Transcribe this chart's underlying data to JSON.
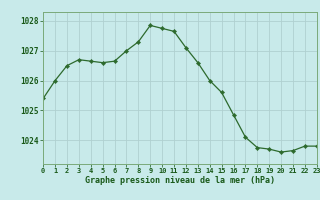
{
  "hours": [
    0,
    1,
    2,
    3,
    4,
    5,
    6,
    7,
    8,
    9,
    10,
    11,
    12,
    13,
    14,
    15,
    16,
    17,
    18,
    19,
    20,
    21,
    22,
    23
  ],
  "pressure": [
    1025.4,
    1026.0,
    1026.5,
    1026.7,
    1026.65,
    1026.6,
    1026.65,
    1027.0,
    1027.3,
    1027.85,
    1027.75,
    1027.65,
    1027.1,
    1026.6,
    1026.0,
    1025.6,
    1024.85,
    1024.1,
    1023.75,
    1023.7,
    1023.6,
    1023.65,
    1023.8,
    1023.8
  ],
  "line_color": "#2d6a2d",
  "marker_color": "#2d6a2d",
  "bg_color": "#c8eaea",
  "grid_color": "#b0d0d0",
  "spine_color": "#7aaa7a",
  "xlabel": "Graphe pression niveau de la mer (hPa)",
  "xlabel_color": "#1a5a1a",
  "tick_color": "#1a5a1a",
  "ylim": [
    1023.2,
    1028.3
  ],
  "yticks": [
    1024,
    1025,
    1026,
    1027,
    1028
  ],
  "xlim": [
    0,
    23
  ],
  "xticks": [
    0,
    1,
    2,
    3,
    4,
    5,
    6,
    7,
    8,
    9,
    10,
    11,
    12,
    13,
    14,
    15,
    16,
    17,
    18,
    19,
    20,
    21,
    22,
    23
  ],
  "xtick_labels": [
    "0",
    "1",
    "2",
    "3",
    "4",
    "5",
    "6",
    "7",
    "8",
    "9",
    "10",
    "11",
    "12",
    "13",
    "14",
    "15",
    "16",
    "17",
    "18",
    "19",
    "20",
    "21",
    "22",
    "23"
  ]
}
